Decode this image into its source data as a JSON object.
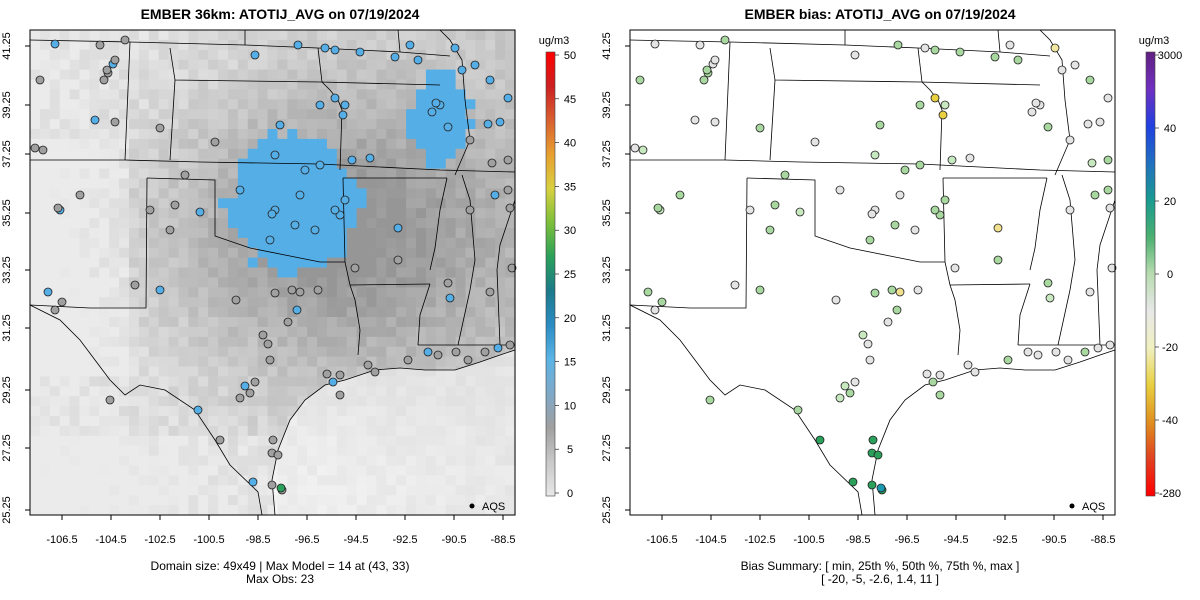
{
  "left_panel": {
    "title": "EMBER 36km: ATOTIJ_AVG on 07/19/2024",
    "footer_line1": "Domain size: 49x49 | Max Model = 14 at (43, 33)",
    "footer_line2": "Max Obs: 23",
    "legend_marker_label": "AQS",
    "colorbar": {
      "unit": "ug/m3",
      "ticks": [
        "50",
        "45",
        "40",
        "35",
        "30",
        "25",
        "20",
        "15",
        "10",
        "5",
        "0"
      ],
      "colors": [
        "#e8e8e8",
        "#c8c8c8",
        "#a0a0a0",
        "#7fa9c7",
        "#5bb4e6",
        "#2b8cc4",
        "#1c7a8a",
        "#2aa05a",
        "#7bbf3a",
        "#d8d040",
        "#e8a030",
        "#d86030",
        "#cc2020",
        "#ff0000"
      ]
    }
  },
  "right_panel": {
    "title": "EMBER bias: ATOTIJ_AVG on 07/19/2024",
    "footer_line1": "Bias Summary: [ min, 25th %, 50th %, 75th %, max ]",
    "footer_line2": "[ -20,  -5,   -2.6,   1.4,   11 ]",
    "legend_marker_label": "AQS",
    "colorbar": {
      "unit": "ug/m3",
      "ticks": [
        "3000",
        "40",
        "20",
        "0",
        "-20",
        "-40",
        "-280"
      ],
      "colors": [
        "#ff0000",
        "#e04020",
        "#e09020",
        "#e8d040",
        "#f0f0c0",
        "#e8e8e8",
        "#b8dcb0",
        "#4cb070",
        "#1a9a90",
        "#2070c0",
        "#2040e0",
        "#7030c0",
        "#602080"
      ]
    }
  },
  "y_ticks": [
    "41.25",
    "39.25",
    "37.25",
    "35.25",
    "33.25",
    "31.25",
    "29.25",
    "27.25",
    "25.25"
  ],
  "x_ticks": [
    "-106.5",
    "-104.5",
    "-102.5",
    "-100.5",
    "-98.5",
    "-96.5",
    "-94.5",
    "-92.5",
    "-90.5",
    "-88.5"
  ],
  "colors": {
    "obs_blue": "#55aee6",
    "obs_gray": "#a0a0a0",
    "bias_green": "#a8d8a0",
    "bias_yellow": "#e8d040"
  }
}
